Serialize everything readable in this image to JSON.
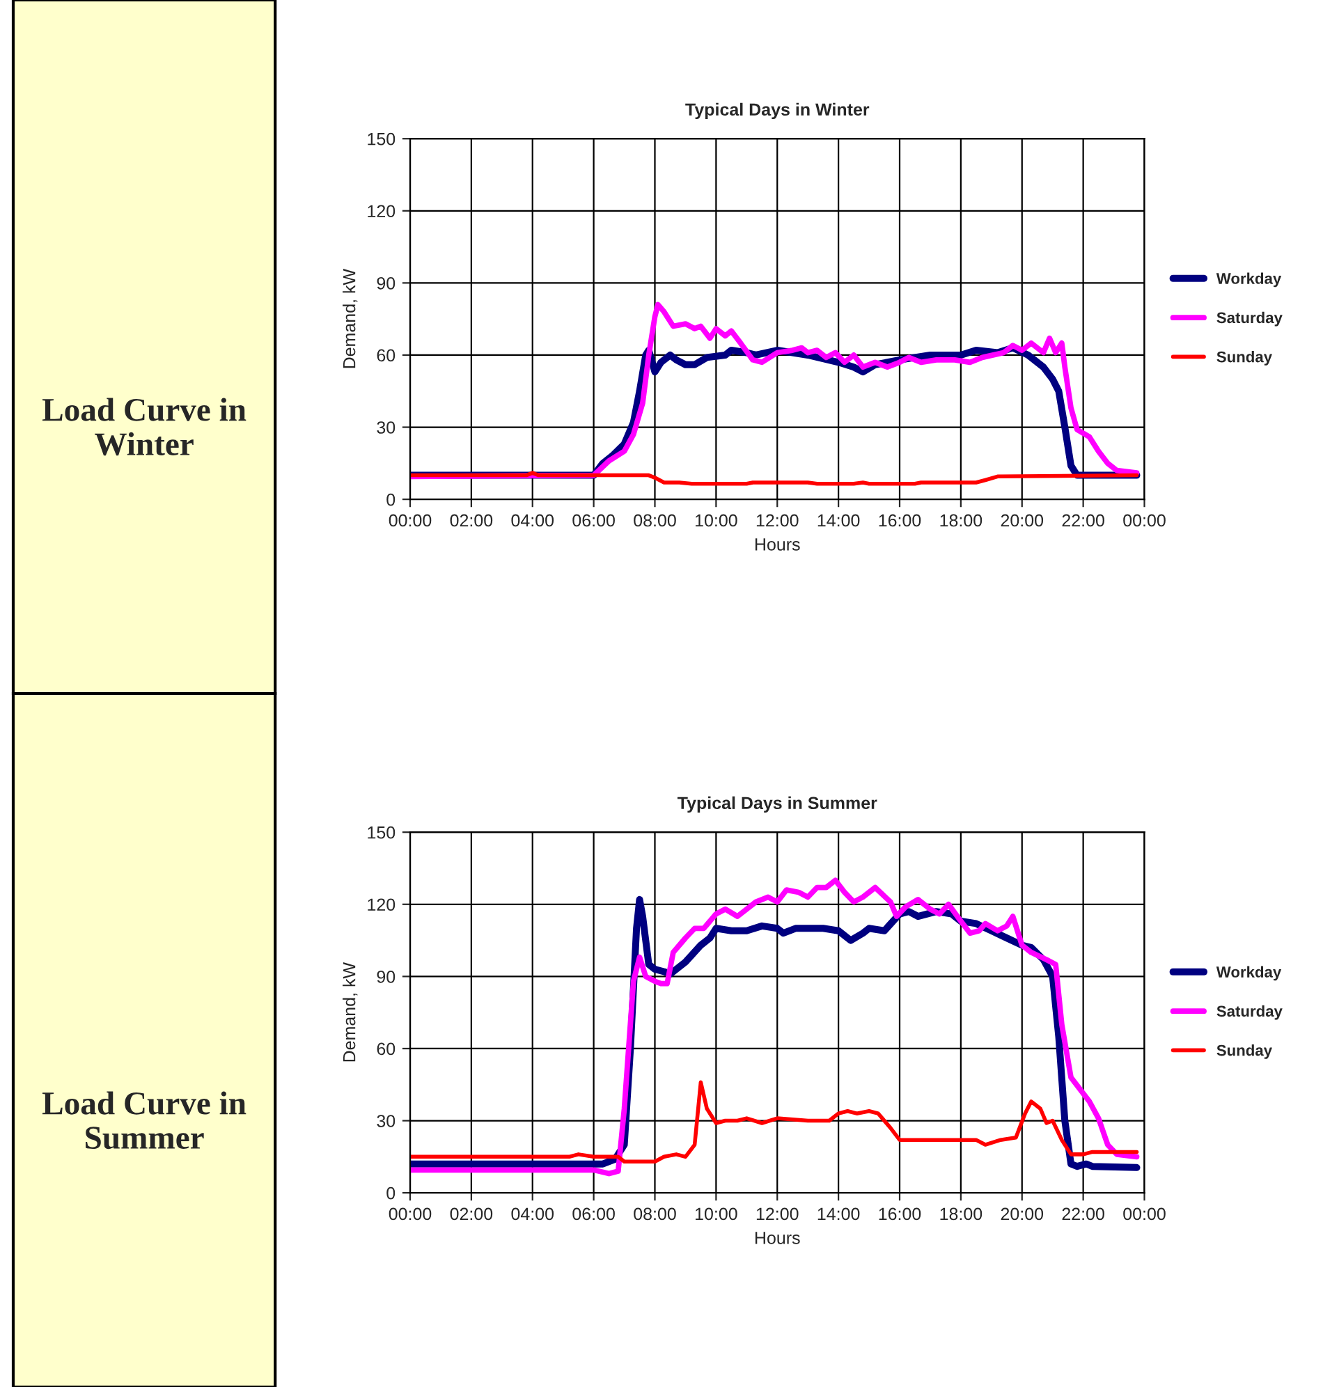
{
  "chart_data": [
    {
      "type": "line",
      "title": "Typical Days in Winter",
      "xlabel": "Hours",
      "ylabel": "Demand, kW",
      "annotations": [
        "Load Curve in Winter"
      ],
      "xlim": [
        0,
        24
      ],
      "xticks": [
        {
          "value": 0,
          "label": "00:00"
        },
        {
          "value": 2,
          "label": "02:00"
        },
        {
          "value": 4,
          "label": "04:00"
        },
        {
          "value": 6,
          "label": "06:00"
        },
        {
          "value": 8,
          "label": "08:00"
        },
        {
          "value": 10,
          "label": "10:00"
        },
        {
          "value": 12,
          "label": "12:00"
        },
        {
          "value": 14,
          "label": "14:00"
        },
        {
          "value": 16,
          "label": "16:00"
        },
        {
          "value": 18,
          "label": "18:00"
        },
        {
          "value": 20,
          "label": "20:00"
        },
        {
          "value": 22,
          "label": "22:00"
        },
        {
          "value": 24,
          "label": "00:00"
        }
      ],
      "ylim": [
        0,
        150
      ],
      "yticks": [
        0,
        30,
        60,
        90,
        120,
        150
      ],
      "grid": true,
      "legend": "right",
      "marker": "none",
      "line_style": "solid",
      "series": [
        {
          "name": "Workday",
          "color": "#000080",
          "x": [
            0,
            6,
            6.3,
            6.6,
            7.0,
            7.3,
            7.5,
            7.7,
            7.8,
            8.0,
            8.2,
            8.5,
            8.7,
            9.0,
            9.3,
            9.7,
            10.3,
            10.5,
            11.0,
            11.3,
            12.0,
            13.0,
            14.0,
            14.5,
            14.8,
            15.2,
            16,
            17,
            18,
            18.5,
            19.2,
            19.7,
            20.2,
            20.7,
            21.0,
            21.2,
            21.4,
            21.6,
            21.8,
            23.75
          ],
          "values": [
            10,
            10,
            15,
            18,
            23,
            32,
            45,
            60,
            62,
            53,
            57,
            60,
            58,
            56,
            56,
            59,
            60,
            62,
            61,
            60,
            62,
            60,
            57,
            55,
            53,
            56,
            58,
            60,
            60,
            62,
            61,
            63,
            60,
            55,
            50,
            45,
            30,
            14,
            10,
            10
          ]
        },
        {
          "name": "Saturday",
          "color": "#ff00ff",
          "x": [
            0,
            6,
            6.5,
            7.0,
            7.3,
            7.6,
            7.8,
            8.0,
            8.1,
            8.3,
            8.6,
            9.0,
            9.3,
            9.5,
            9.8,
            10.0,
            10.3,
            10.5,
            10.8,
            11.2,
            11.5,
            12,
            12.5,
            12.8,
            13.0,
            13.3,
            13.6,
            13.9,
            14.2,
            14.5,
            14.8,
            15.2,
            15.6,
            16,
            16.3,
            16.7,
            17.2,
            17.8,
            18.3,
            18.7,
            19.4,
            19.7,
            20.0,
            20.3,
            20.7,
            20.9,
            21.1,
            21.3,
            21.4,
            21.6,
            21.8,
            22.2,
            22.5,
            22.8,
            23.1,
            23.75
          ],
          "values": [
            9.5,
            10,
            16,
            20,
            27,
            40,
            60,
            76,
            81,
            78,
            72,
            73,
            71,
            72,
            67,
            71,
            68,
            70,
            65,
            58,
            57,
            61,
            62,
            63,
            61,
            62,
            59,
            61,
            57,
            60,
            55,
            57,
            55,
            57,
            59,
            57,
            58,
            58,
            57,
            59,
            61,
            64,
            62,
            65,
            61,
            67,
            61,
            65,
            55,
            38,
            29,
            26,
            20,
            15,
            12,
            11
          ]
        },
        {
          "name": "Sunday",
          "color": "#ff0000",
          "x": [
            0,
            3.8,
            4.0,
            4.2,
            7.8,
            8.0,
            8.3,
            8.8,
            9.2,
            10,
            11,
            11.2,
            13,
            13.3,
            14.5,
            14.8,
            15.0,
            16.5,
            16.7,
            18.5,
            18.8,
            19.2,
            23.75
          ],
          "values": [
            10,
            10,
            11,
            10,
            10,
            9,
            7,
            7,
            6.5,
            6.5,
            6.5,
            7,
            7,
            6.5,
            6.5,
            7,
            6.5,
            6.5,
            7,
            7,
            8,
            9.5,
            10
          ]
        }
      ]
    },
    {
      "type": "line",
      "title": "Typical Days in Summer",
      "xlabel": "Hours",
      "ylabel": "Demand, kW",
      "annotations": [
        "Load Curve in Summer"
      ],
      "xlim": [
        0,
        24
      ],
      "xticks": [
        {
          "value": 0,
          "label": "00:00"
        },
        {
          "value": 2,
          "label": "02:00"
        },
        {
          "value": 4,
          "label": "04:00"
        },
        {
          "value": 6,
          "label": "06:00"
        },
        {
          "value": 8,
          "label": "08:00"
        },
        {
          "value": 10,
          "label": "10:00"
        },
        {
          "value": 12,
          "label": "12:00"
        },
        {
          "value": 14,
          "label": "14:00"
        },
        {
          "value": 16,
          "label": "16:00"
        },
        {
          "value": 18,
          "label": "18:00"
        },
        {
          "value": 20,
          "label": "20:00"
        },
        {
          "value": 22,
          "label": "22:00"
        },
        {
          "value": 24,
          "label": "00:00"
        }
      ],
      "ylim": [
        0,
        150
      ],
      "yticks": [
        0,
        30,
        60,
        90,
        120,
        150
      ],
      "grid": true,
      "legend": "right",
      "marker": "none",
      "line_style": "solid",
      "series": [
        {
          "name": "Workday",
          "color": "#000080",
          "x": [
            0,
            6.3,
            6.7,
            7.0,
            7.2,
            7.4,
            7.5,
            7.6,
            7.8,
            8.0,
            8.3,
            8.5,
            9.0,
            9.5,
            9.8,
            10.0,
            10.5,
            11.0,
            11.5,
            12.0,
            12.2,
            12.6,
            13.0,
            13.5,
            14.0,
            14.4,
            14.8,
            15.0,
            15.5,
            16.0,
            16.3,
            16.6,
            17.2,
            17.7,
            18.0,
            18.5,
            19.0,
            19.5,
            20.0,
            20.3,
            20.7,
            21.0,
            21.2,
            21.4,
            21.6,
            21.8,
            22.1,
            22.3,
            23.75
          ],
          "values": [
            12,
            12,
            14,
            20,
            60,
            110,
            122,
            115,
            95,
            93,
            92,
            91,
            96,
            103,
            106,
            110,
            109,
            109,
            111,
            110,
            108,
            110,
            110,
            110,
            109,
            105,
            108,
            110,
            109,
            116,
            117,
            115,
            117,
            116,
            113,
            112,
            109,
            106,
            103,
            102,
            97,
            90,
            65,
            30,
            12,
            11,
            12,
            11,
            10.5
          ]
        },
        {
          "name": "Saturday",
          "color": "#ff00ff",
          "x": [
            0,
            6.0,
            6.5,
            6.8,
            7.0,
            7.3,
            7.5,
            7.7,
            8.0,
            8.2,
            8.4,
            8.6,
            9.0,
            9.3,
            9.6,
            10.0,
            10.3,
            10.7,
            11.0,
            11.3,
            11.7,
            12.0,
            12.3,
            12.7,
            13.0,
            13.3,
            13.6,
            13.9,
            14.2,
            14.5,
            14.8,
            15.2,
            15.7,
            15.9,
            16.2,
            16.6,
            17.0,
            17.3,
            17.6,
            18.0,
            18.3,
            18.6,
            18.8,
            19.2,
            19.5,
            19.7,
            20.0,
            20.3,
            20.8,
            21.1,
            21.3,
            21.6,
            21.9,
            22.2,
            22.5,
            22.8,
            23.1,
            23.75
          ],
          "values": [
            9.5,
            9.5,
            8,
            9,
            35,
            88,
            98,
            90,
            88,
            87,
            87,
            100,
            106,
            110,
            110,
            116,
            118,
            115,
            118,
            121,
            123,
            121,
            126,
            125,
            123,
            127,
            127,
            130,
            125,
            121,
            123,
            127,
            121,
            115,
            119,
            122,
            118,
            116,
            120,
            113,
            108,
            109,
            112,
            109,
            111,
            115,
            103,
            100,
            97,
            95,
            70,
            48,
            43,
            38,
            31,
            20,
            16,
            15
          ]
        },
        {
          "name": "Sunday",
          "color": "#ff0000",
          "x": [
            0,
            5.2,
            5.5,
            6.0,
            6.8,
            7.0,
            8.0,
            8.3,
            8.7,
            9.0,
            9.3,
            9.5,
            9.7,
            10.0,
            10.3,
            10.7,
            11.0,
            11.5,
            12.0,
            13.0,
            13.7,
            14.0,
            14.3,
            14.6,
            15.0,
            15.3,
            15.7,
            16.0,
            16.5,
            17.0,
            18.5,
            18.8,
            19.3,
            19.8,
            20.1,
            20.3,
            20.6,
            20.8,
            21.0,
            21.3,
            21.6,
            22.0,
            22.3,
            23.75
          ],
          "values": [
            15,
            15,
            16,
            15,
            15,
            13,
            13,
            15,
            16,
            15,
            20,
            46,
            35,
            29,
            30,
            30,
            31,
            29,
            31,
            30,
            30,
            33,
            34,
            33,
            34,
            33,
            27,
            22,
            22,
            22,
            22,
            20,
            22,
            23,
            33,
            38,
            35,
            29,
            30,
            22,
            16,
            16,
            17,
            17
          ]
        }
      ]
    }
  ]
}
